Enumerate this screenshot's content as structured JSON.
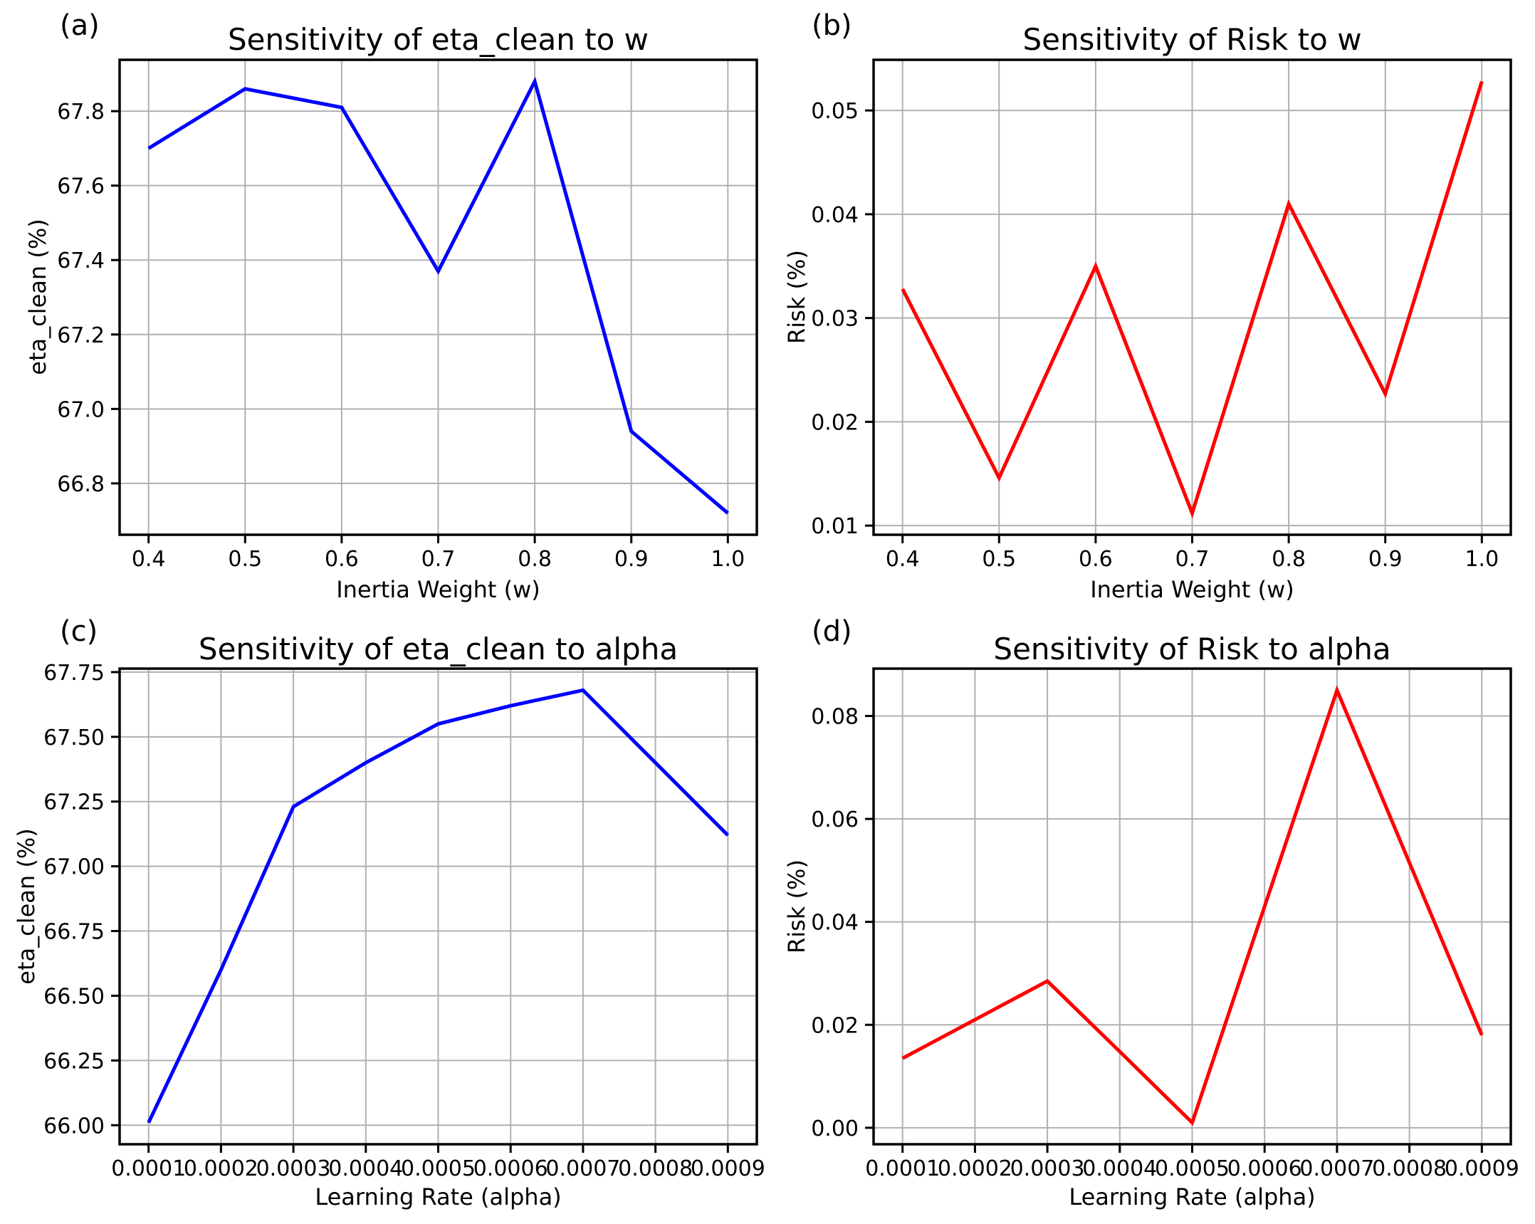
{
  "styles": {
    "background": "#ffffff",
    "grid_color": "#b0b0b0",
    "spine_color": "#000000",
    "text_color": "#000000",
    "blue_line": "#0000ff",
    "red_line": "#ff0000"
  },
  "chart_data": [
    {
      "type": "line",
      "panel_label": "(a)",
      "title": "Sensitivity of eta_clean to w",
      "xlabel": "Inertia Weight (w)",
      "ylabel": "eta_clean (%)",
      "line_color": "#0000ff",
      "grid": true,
      "legend": "none",
      "x": [
        0.4,
        0.5,
        0.6,
        0.7,
        0.8,
        0.9,
        1.0
      ],
      "y": [
        67.7,
        67.86,
        67.81,
        67.37,
        67.88,
        66.94,
        66.72
      ],
      "xlim": [
        0.37,
        1.03
      ],
      "ylim": [
        66.662,
        67.938
      ],
      "xtick_values": [
        0.4,
        0.5,
        0.6,
        0.7,
        0.8,
        0.9,
        1.0
      ],
      "xtick_labels": [
        "0.4",
        "0.5",
        "0.6",
        "0.7",
        "0.8",
        "0.9",
        "1.0"
      ],
      "ytick_values": [
        66.8,
        67.0,
        67.2,
        67.4,
        67.6,
        67.8
      ],
      "ytick_labels": [
        "66.8",
        "67.0",
        "67.2",
        "67.4",
        "67.6",
        "67.8"
      ]
    },
    {
      "type": "line",
      "panel_label": "(b)",
      "title": "Sensitivity of Risk to w",
      "xlabel": "Inertia Weight (w)",
      "ylabel": "Risk (%)",
      "line_color": "#ff0000",
      "grid": true,
      "legend": "none",
      "x": [
        0.4,
        0.5,
        0.6,
        0.7,
        0.8,
        0.9,
        1.0
      ],
      "y": [
        0.0328,
        0.0146,
        0.035,
        0.0112,
        0.041,
        0.0227,
        0.0528
      ],
      "xlim": [
        0.37,
        1.03
      ],
      "ylim": [
        0.00912,
        0.05488
      ],
      "xtick_values": [
        0.4,
        0.5,
        0.6,
        0.7,
        0.8,
        0.9,
        1.0
      ],
      "xtick_labels": [
        "0.4",
        "0.5",
        "0.6",
        "0.7",
        "0.8",
        "0.9",
        "1.0"
      ],
      "ytick_values": [
        0.01,
        0.02,
        0.03,
        0.04,
        0.05
      ],
      "ytick_labels": [
        "0.01",
        "0.02",
        "0.03",
        "0.04",
        "0.05"
      ]
    },
    {
      "type": "line",
      "panel_label": "(c)",
      "title": "Sensitivity of eta_clean to alpha",
      "xlabel": "Learning Rate (alpha)",
      "ylabel": "eta_clean (%)",
      "line_color": "#0000ff",
      "grid": true,
      "legend": "none",
      "x": [
        0.0001,
        0.0002,
        0.0003,
        0.0004,
        0.0005,
        0.0006,
        0.0007,
        0.0008,
        0.0009
      ],
      "y": [
        66.01,
        66.6,
        67.23,
        67.4,
        67.55,
        67.62,
        67.68,
        67.4,
        67.12
      ],
      "xlim": [
        6e-05,
        0.00094
      ],
      "ylim": [
        65.9265,
        67.7635
      ],
      "xtick_values": [
        0.0001,
        0.0002,
        0.0003,
        0.0004,
        0.0005,
        0.0006,
        0.0007,
        0.0008,
        0.0009
      ],
      "xtick_labels": [
        "0.0001",
        "0.0002",
        "0.0003",
        "0.0004",
        "0.0005",
        "0.0006",
        "0.0007",
        "0.0008",
        "0.0009"
      ],
      "ytick_values": [
        66.0,
        66.25,
        66.5,
        66.75,
        67.0,
        67.25,
        67.5,
        67.75
      ],
      "ytick_labels": [
        "66.00",
        "66.25",
        "66.50",
        "66.75",
        "67.00",
        "67.25",
        "67.50",
        "67.75"
      ]
    },
    {
      "type": "line",
      "panel_label": "(d)",
      "title": "Sensitivity of Risk to alpha",
      "xlabel": "Learning Rate (alpha)",
      "ylabel": "Risk (%)",
      "line_color": "#ff0000",
      "grid": true,
      "legend": "none",
      "x": [
        0.0001,
        0.0002,
        0.0003,
        0.0004,
        0.0005,
        0.0006,
        0.0007,
        0.0008,
        0.0009
      ],
      "y": [
        0.0135,
        0.021,
        0.0285,
        0.0148,
        0.001,
        0.043,
        0.085,
        0.0515,
        0.018
      ],
      "xlim": [
        6e-05,
        0.00094
      ],
      "ylim": [
        -0.0032,
        0.0892
      ],
      "xtick_values": [
        0.0001,
        0.0002,
        0.0003,
        0.0004,
        0.0005,
        0.0006,
        0.0007,
        0.0008,
        0.0009
      ],
      "xtick_labels": [
        "0.0001",
        "0.0002",
        "0.0003",
        "0.0004",
        "0.0005",
        "0.0006",
        "0.0007",
        "0.0008",
        "0.0009"
      ],
      "ytick_values": [
        0.0,
        0.02,
        0.04,
        0.06,
        0.08
      ],
      "ytick_labels": [
        "0.00",
        "0.02",
        "0.04",
        "0.06",
        "0.08"
      ]
    }
  ]
}
